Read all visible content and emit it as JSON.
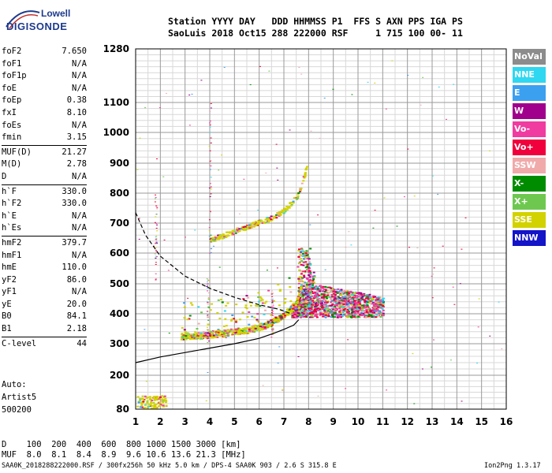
{
  "logo": {
    "line1": "Lowell",
    "line2": "DIGISONDE"
  },
  "header": {
    "line1": "Station YYYY DAY   DDD HHMMSS P1  FFS S AXN PPS IGA PS",
    "line2": "SaoLuis 2018 Oct15 288 222000 RSF     1 715 100 00- 11"
  },
  "params": [
    {
      "group": [
        {
          "name": "foF2",
          "value": "7.650"
        },
        {
          "name": "foF1",
          "value": "N/A"
        },
        {
          "name": "foF1p",
          "value": "N/A"
        },
        {
          "name": "foE",
          "value": "N/A"
        },
        {
          "name": "foEp",
          "value": "0.38"
        },
        {
          "name": "fxI",
          "value": "8.10"
        },
        {
          "name": "foEs",
          "value": "N/A"
        },
        {
          "name": "fmin",
          "value": "3.15"
        }
      ]
    },
    {
      "group": [
        {
          "name": "MUF(D)",
          "value": "21.27"
        },
        {
          "name": "M(D)",
          "value": "2.78"
        },
        {
          "name": "D",
          "value": "N/A"
        }
      ]
    },
    {
      "group": [
        {
          "name": "h`F",
          "value": "330.0"
        },
        {
          "name": "h`F2",
          "value": "330.0"
        },
        {
          "name": "h`E",
          "value": "N/A"
        },
        {
          "name": "h`Es",
          "value": "N/A"
        }
      ]
    },
    {
      "group": [
        {
          "name": "hmF2",
          "value": "379.7"
        },
        {
          "name": "hmF1",
          "value": "N/A"
        },
        {
          "name": "hmE",
          "value": "110.0"
        },
        {
          "name": "yF2",
          "value": "86.0"
        },
        {
          "name": "yF1",
          "value": "N/A"
        },
        {
          "name": "yE",
          "value": "20.0"
        },
        {
          "name": "B0",
          "value": "84.1"
        },
        {
          "name": "B1",
          "value": "2.18"
        }
      ]
    },
    {
      "group": [
        {
          "name": "C-level",
          "value": "44"
        }
      ]
    }
  ],
  "auto": {
    "line1": "Auto:",
    "line2": "Artist5",
    "line3": "500200"
  },
  "legend": [
    {
      "label": "NoVal",
      "color": "#8c8c8c"
    },
    {
      "label": "NNE",
      "color": "#2fd7f0"
    },
    {
      "label": "E",
      "color": "#3ca0f0"
    },
    {
      "label": "W",
      "color": "#a0008c"
    },
    {
      "label": "Vo-",
      "color": "#f03ca0"
    },
    {
      "label": "Vo+",
      "color": "#f0003c"
    },
    {
      "label": "SSW",
      "color": "#f0aaaa"
    },
    {
      "label": "X-",
      "color": "#008c00"
    },
    {
      "label": "X+",
      "color": "#6ec850"
    },
    {
      "label": "SSE",
      "color": "#d2d200"
    },
    {
      "label": "NNW",
      "color": "#1414c8"
    }
  ],
  "muf_table": {
    "line1": "D    100  200  400  600  800 1000 1500 3000 [km]",
    "line2": "MUF  8.0  8.1  8.4  8.9  9.6 10.6 13.6 21.3 [MHz]"
  },
  "footer": "SAA0K_2018288222000.RSF / 300fx256h 50 kHz 5.0 km / DPS-4 SAA0K 903 / 2.6 S 315.8 E",
  "version": "Ion2Png 1.3.17",
  "chart_data": {
    "type": "scatter",
    "xlim": [
      1,
      16
    ],
    "ylim": [
      80,
      1280
    ],
    "xticks": [
      1,
      2,
      3,
      4,
      5,
      6,
      7,
      8,
      9,
      10,
      11,
      12,
      13,
      14,
      15,
      16
    ],
    "yticks": [
      80,
      200,
      300,
      400,
      500,
      600,
      700,
      800,
      900,
      1000,
      1100,
      1280
    ],
    "grid": true,
    "profile": [
      [
        1.0,
        240
      ],
      [
        2.0,
        258
      ],
      [
        3.0,
        272
      ],
      [
        4.0,
        286
      ],
      [
        5.0,
        300
      ],
      [
        6.0,
        318
      ],
      [
        6.6,
        335
      ],
      [
        7.0,
        348
      ],
      [
        7.4,
        362
      ],
      [
        7.6,
        380
      ]
    ],
    "dashed_curve": [
      [
        1.0,
        735
      ],
      [
        1.4,
        660
      ],
      [
        2.0,
        590
      ],
      [
        3.0,
        525
      ],
      [
        4.0,
        485
      ],
      [
        5.0,
        455
      ],
      [
        6.0,
        430
      ],
      [
        6.8,
        415
      ],
      [
        7.3,
        400
      ]
    ],
    "trace_o": [
      [
        2.8,
        325
      ],
      [
        3.5,
        326
      ],
      [
        4.0,
        330
      ],
      [
        5.0,
        340
      ],
      [
        5.5,
        345
      ],
      [
        6.2,
        360
      ],
      [
        6.8,
        385
      ],
      [
        7.2,
        410
      ],
      [
        7.5,
        440
      ],
      [
        7.65,
        480
      ]
    ],
    "trace_second_hop": [
      [
        4.0,
        645
      ],
      [
        5.0,
        675
      ],
      [
        6.0,
        705
      ],
      [
        6.5,
        720
      ],
      [
        7.0,
        745
      ],
      [
        7.5,
        790
      ],
      [
        7.8,
        860
      ],
      [
        7.9,
        890
      ]
    ],
    "echo_band": {
      "freq_range": [
        7.3,
        11.0
      ],
      "height_range": [
        390,
        540
      ]
    },
    "low_echoes": {
      "freq_range": [
        1.0,
        2.2
      ],
      "height_range": [
        80,
        130
      ]
    }
  }
}
